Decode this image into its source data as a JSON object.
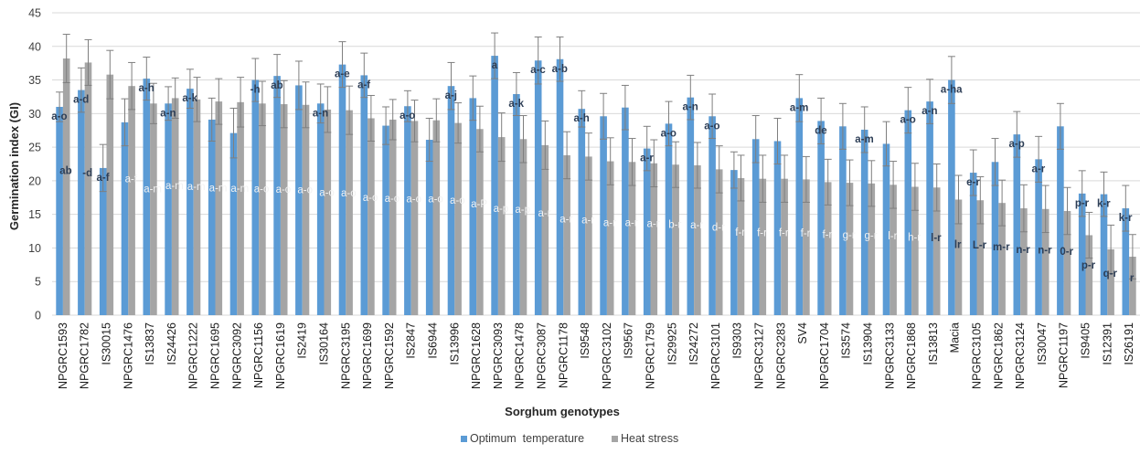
{
  "chart_data": {
    "type": "bar",
    "xlabel": "Sorghum genotypes",
    "ylabel": "Germination index (GI)",
    "ylim": [
      0,
      45
    ],
    "yticks": [
      0,
      5,
      10,
      15,
      20,
      25,
      30,
      35,
      40,
      45
    ],
    "grid": true,
    "legend_position": "bottom",
    "colors": {
      "optimum": "#5b9bd5",
      "heat": "#a5a5a5",
      "grid": "#d9d9d9",
      "error": "#7f7f7f"
    },
    "categories": [
      "NPGRC1593",
      "NPGRC1782",
      "IS30015",
      "NPGRC1476",
      "IS13837",
      "IS24426",
      "NPGRC1222",
      "NPGRC1695",
      "NPGRC3092",
      "NPGRC1156",
      "NPGRC1619",
      "IS2419",
      "IS30164",
      "NPGRC3195",
      "NPGRC1699",
      "NPGRC1592",
      "IS2847",
      "IS6944",
      "IS13996",
      "NPGRC1628",
      "NPGRC3093",
      "NPGRC1478",
      "NPGRC3087",
      "NPGRC1178",
      "IS9548",
      "NPGRC3102",
      "IS9567",
      "NPGRC1759",
      "IS29925",
      "IS24272",
      "NPGRC3101",
      "IS9303",
      "NPGRC3127",
      "NPGRC3283",
      "SV4",
      "NPGRC1704",
      "IS3574",
      "IS13904",
      "NPGRC3133",
      "NPGRC1868",
      "IS13813",
      "Macia",
      "NPGRC3105",
      "NPGRC1862",
      "NPGRC3124",
      "IS30047",
      "NPGRC1197",
      "IS9405",
      "IS12391",
      "IS26191"
    ],
    "series": [
      {
        "name": "Optimum  temperature",
        "values": [
          31.0,
          33.5,
          21.9,
          28.7,
          35.2,
          31.5,
          33.7,
          29.1,
          27.1,
          35.0,
          35.6,
          34.2,
          31.5,
          37.3,
          35.7,
          28.2,
          31.1,
          26.1,
          34.1,
          32.3,
          38.6,
          32.9,
          37.9,
          38.1,
          30.7,
          29.6,
          30.9,
          24.8,
          28.5,
          32.4,
          29.6,
          21.6,
          26.2,
          25.9,
          32.3,
          28.9,
          28.1,
          27.6,
          25.5,
          30.5,
          31.8,
          35.0,
          21.2,
          22.8,
          26.9,
          23.2,
          28.1,
          18.1,
          18.0,
          15.9
        ],
        "errors": [
          2.2,
          3.3,
          3.5,
          3.5,
          3.2,
          2.5,
          2.9,
          3.2,
          3.7,
          3.2,
          3.2,
          3.6,
          2.9,
          3.4,
          3.3,
          2.8,
          2.3,
          3.2,
          3.5,
          3.3,
          3.4,
          3.2,
          3.5,
          3.3,
          2.7,
          3.4,
          3.3,
          3.3,
          3.3,
          3.3,
          3.3,
          2.7,
          3.5,
          3.4,
          3.5,
          3.4,
          3.4,
          3.4,
          3.3,
          3.4,
          3.3,
          3.5,
          3.4,
          3.5,
          3.4,
          3.4,
          3.4,
          3.4,
          3.3,
          3.4
        ],
        "labels": [
          "a-o",
          "a-d",
          "a-f",
          "",
          "a-h",
          "a-n",
          "a-k",
          "",
          "",
          "-h",
          "ab",
          "",
          "a-n",
          "a-e",
          "a-f",
          "",
          "a-o",
          "",
          "a-j",
          "",
          "a",
          "a-k",
          "a-c",
          "a-b",
          "a-h",
          "",
          "",
          "a-r",
          "a-o",
          "a-n",
          "a-o",
          "",
          "",
          "",
          "a-m",
          "de",
          "",
          "a-m",
          "",
          "a-o",
          "a-n",
          "a-ha",
          "e-r",
          "",
          "a-p",
          "a-r",
          "",
          "p-r",
          "k-r",
          "k-r"
        ]
      },
      {
        "name": "Heat stress",
        "values": [
          38.2,
          37.6,
          35.8,
          34.1,
          31.5,
          32.3,
          32.1,
          31.8,
          31.7,
          31.5,
          31.4,
          31.3,
          30.6,
          30.5,
          29.3,
          29.1,
          28.9,
          29.0,
          28.6,
          27.7,
          26.5,
          26.2,
          25.3,
          23.8,
          23.6,
          22.9,
          22.8,
          22.6,
          22.4,
          22.3,
          21.7,
          20.4,
          20.3,
          20.3,
          20.2,
          19.8,
          19.7,
          19.6,
          19.4,
          19.1,
          19.0,
          17.2,
          17.1,
          16.7,
          15.9,
          15.8,
          15.5,
          11.9,
          9.8,
          8.7
        ],
        "errors": [
          3.6,
          3.4,
          3.6,
          3.5,
          3.0,
          3.0,
          3.3,
          3.4,
          3.7,
          3.3,
          3.5,
          3.4,
          3.4,
          3.6,
          3.4,
          3.0,
          3.1,
          3.2,
          3.0,
          3.4,
          3.6,
          3.5,
          3.6,
          3.5,
          3.5,
          3.5,
          3.5,
          3.5,
          3.4,
          3.4,
          3.5,
          3.4,
          3.5,
          3.5,
          3.4,
          3.4,
          3.4,
          3.4,
          3.5,
          3.5,
          3.5,
          3.6,
          3.5,
          3.4,
          3.5,
          3.5,
          3.5,
          3.4,
          3.6,
          3.3
        ],
        "labels": [
          "ab",
          "-d",
          "",
          "a-f",
          "a-m",
          "a-m",
          "a-m",
          "a-m",
          "a-m",
          "a-o",
          "a-o",
          "a-o",
          "a-o",
          "a-o",
          "a-o",
          "a-o",
          "a-o",
          "a-o",
          "a-o",
          "a-P",
          "a-p",
          "a-p",
          "a-r",
          "a-r",
          "a-r",
          "a-r",
          "a-r",
          "a-r",
          "b-r",
          "a-r",
          "d-r",
          "f-r",
          "f-r",
          "f-r",
          "f-r",
          "f-r",
          "g-r",
          "g-r",
          "l-r",
          "h-r",
          "l-r",
          "lr",
          "L-r",
          "m-r",
          "n-r",
          "n-r",
          "0-r",
          "p-r",
          "q-r",
          "r"
        ]
      }
    ]
  }
}
